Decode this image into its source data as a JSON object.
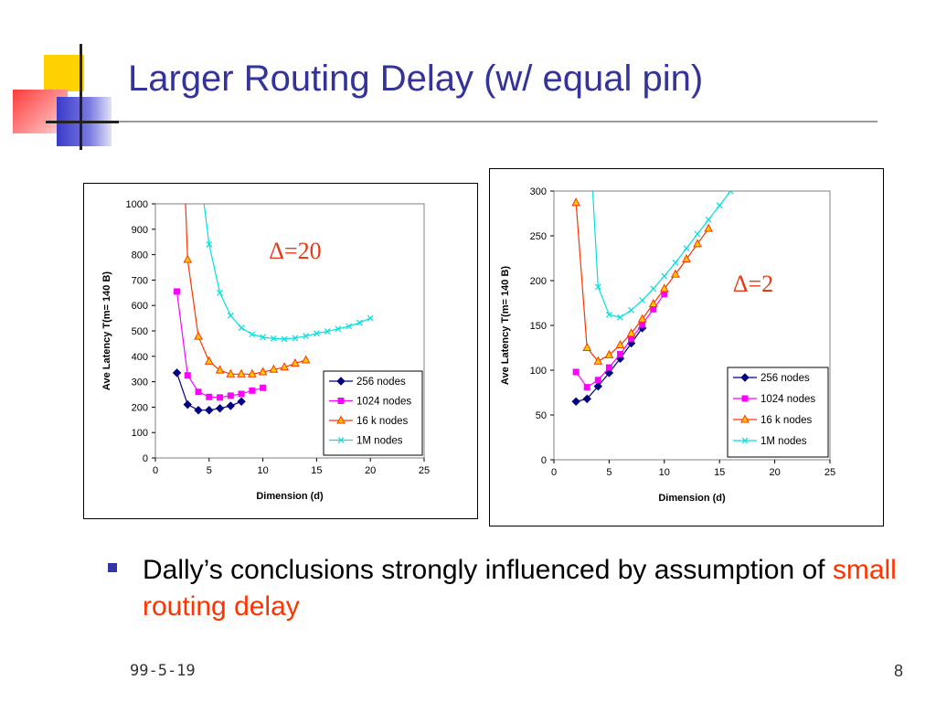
{
  "slide": {
    "title": "Larger Routing Delay (w/ equal pin)",
    "bullet_text": "Dally’s conclusions strongly influenced by assumption of ",
    "bullet_highlight": "small routing delay",
    "footer_date": "99-5-19",
    "page_number": "8"
  },
  "colors": {
    "title": "#33339a",
    "highlight": "#ff3300",
    "series_256": "#000080",
    "series_1024": "#ff00ff",
    "series_16k": "#ff3300",
    "series_16k_marker_fill": "#ffcc00",
    "series_1M": "#00e0e0"
  },
  "chart_data": [
    {
      "type": "line",
      "annotation": "Δ=20",
      "xlabel": "Dimension (d)",
      "ylabel": "Ave Latency T(m= 140 B)",
      "xlim": [
        0,
        25
      ],
      "ylim": [
        0,
        1000
      ],
      "xticks": [
        0,
        5,
        10,
        15,
        20,
        25
      ],
      "yticks": [
        0,
        100,
        200,
        300,
        400,
        500,
        600,
        700,
        800,
        900,
        1000
      ],
      "grid": false,
      "legend_position": "bottom-right",
      "series": [
        {
          "name": "256 nodes",
          "marker": "diamond",
          "x": [
            2,
            3,
            4,
            5,
            6,
            7,
            8
          ],
          "y": [
            335,
            210,
            188,
            188,
            195,
            205,
            222
          ]
        },
        {
          "name": "1024 nodes",
          "marker": "square",
          "x": [
            2,
            3,
            4,
            5,
            6,
            7,
            8,
            9,
            10
          ],
          "y": [
            655,
            325,
            260,
            240,
            238,
            245,
            252,
            265,
            276
          ]
        },
        {
          "name": "16 k nodes",
          "marker": "triangle",
          "x": [
            2.8,
            3,
            4,
            5,
            6,
            7,
            8,
            9,
            10,
            11,
            12,
            13,
            14
          ],
          "y": [
            1010,
            780,
            478,
            380,
            345,
            330,
            330,
            330,
            338,
            348,
            357,
            372,
            385
          ]
        },
        {
          "name": "1M nodes",
          "marker": "x",
          "x": [
            4.5,
            5,
            6,
            7,
            8,
            9,
            10,
            11,
            12,
            13,
            14,
            15,
            16,
            17,
            18,
            19,
            20
          ],
          "y": [
            1010,
            840,
            650,
            560,
            512,
            487,
            475,
            470,
            468,
            472,
            480,
            490,
            498,
            508,
            518,
            532,
            550
          ]
        }
      ]
    },
    {
      "type": "line",
      "annotation": "Δ=2",
      "xlabel": "Dimension (d)",
      "ylabel": "Ave Latency T(m= 140 B)",
      "xlim": [
        0,
        25
      ],
      "ylim": [
        0,
        300
      ],
      "xticks": [
        0,
        5,
        10,
        15,
        20,
        25
      ],
      "yticks": [
        0,
        50,
        100,
        150,
        200,
        250,
        300
      ],
      "grid": false,
      "legend_position": "bottom-right",
      "series": [
        {
          "name": "256 nodes",
          "marker": "diamond",
          "x": [
            2,
            3,
            4,
            5,
            6,
            7,
            8
          ],
          "y": [
            65,
            68,
            82,
            97,
            113,
            130,
            147
          ]
        },
        {
          "name": "1024 nodes",
          "marker": "square",
          "x": [
            2,
            3,
            4,
            5,
            6,
            7,
            8,
            9,
            10
          ],
          "y": [
            98,
            81,
            89,
            103,
            118,
            135,
            151,
            168,
            185
          ]
        },
        {
          "name": "16 k nodes",
          "marker": "triangle",
          "x": [
            2,
            3,
            4,
            5,
            6,
            7,
            8,
            9,
            10,
            11,
            12,
            13,
            14
          ],
          "y": [
            287,
            125,
            110,
            117,
            128,
            141,
            157,
            174,
            191,
            207,
            224,
            241,
            258
          ]
        },
        {
          "name": "1M nodes",
          "marker": "x",
          "x": [
            3.5,
            4,
            5,
            6,
            7,
            8,
            9,
            10,
            11,
            12,
            13,
            14,
            15,
            16
          ],
          "y": [
            303,
            193,
            162,
            159,
            167,
            178,
            191,
            205,
            220,
            236,
            252,
            268,
            284,
            300
          ]
        }
      ]
    }
  ]
}
